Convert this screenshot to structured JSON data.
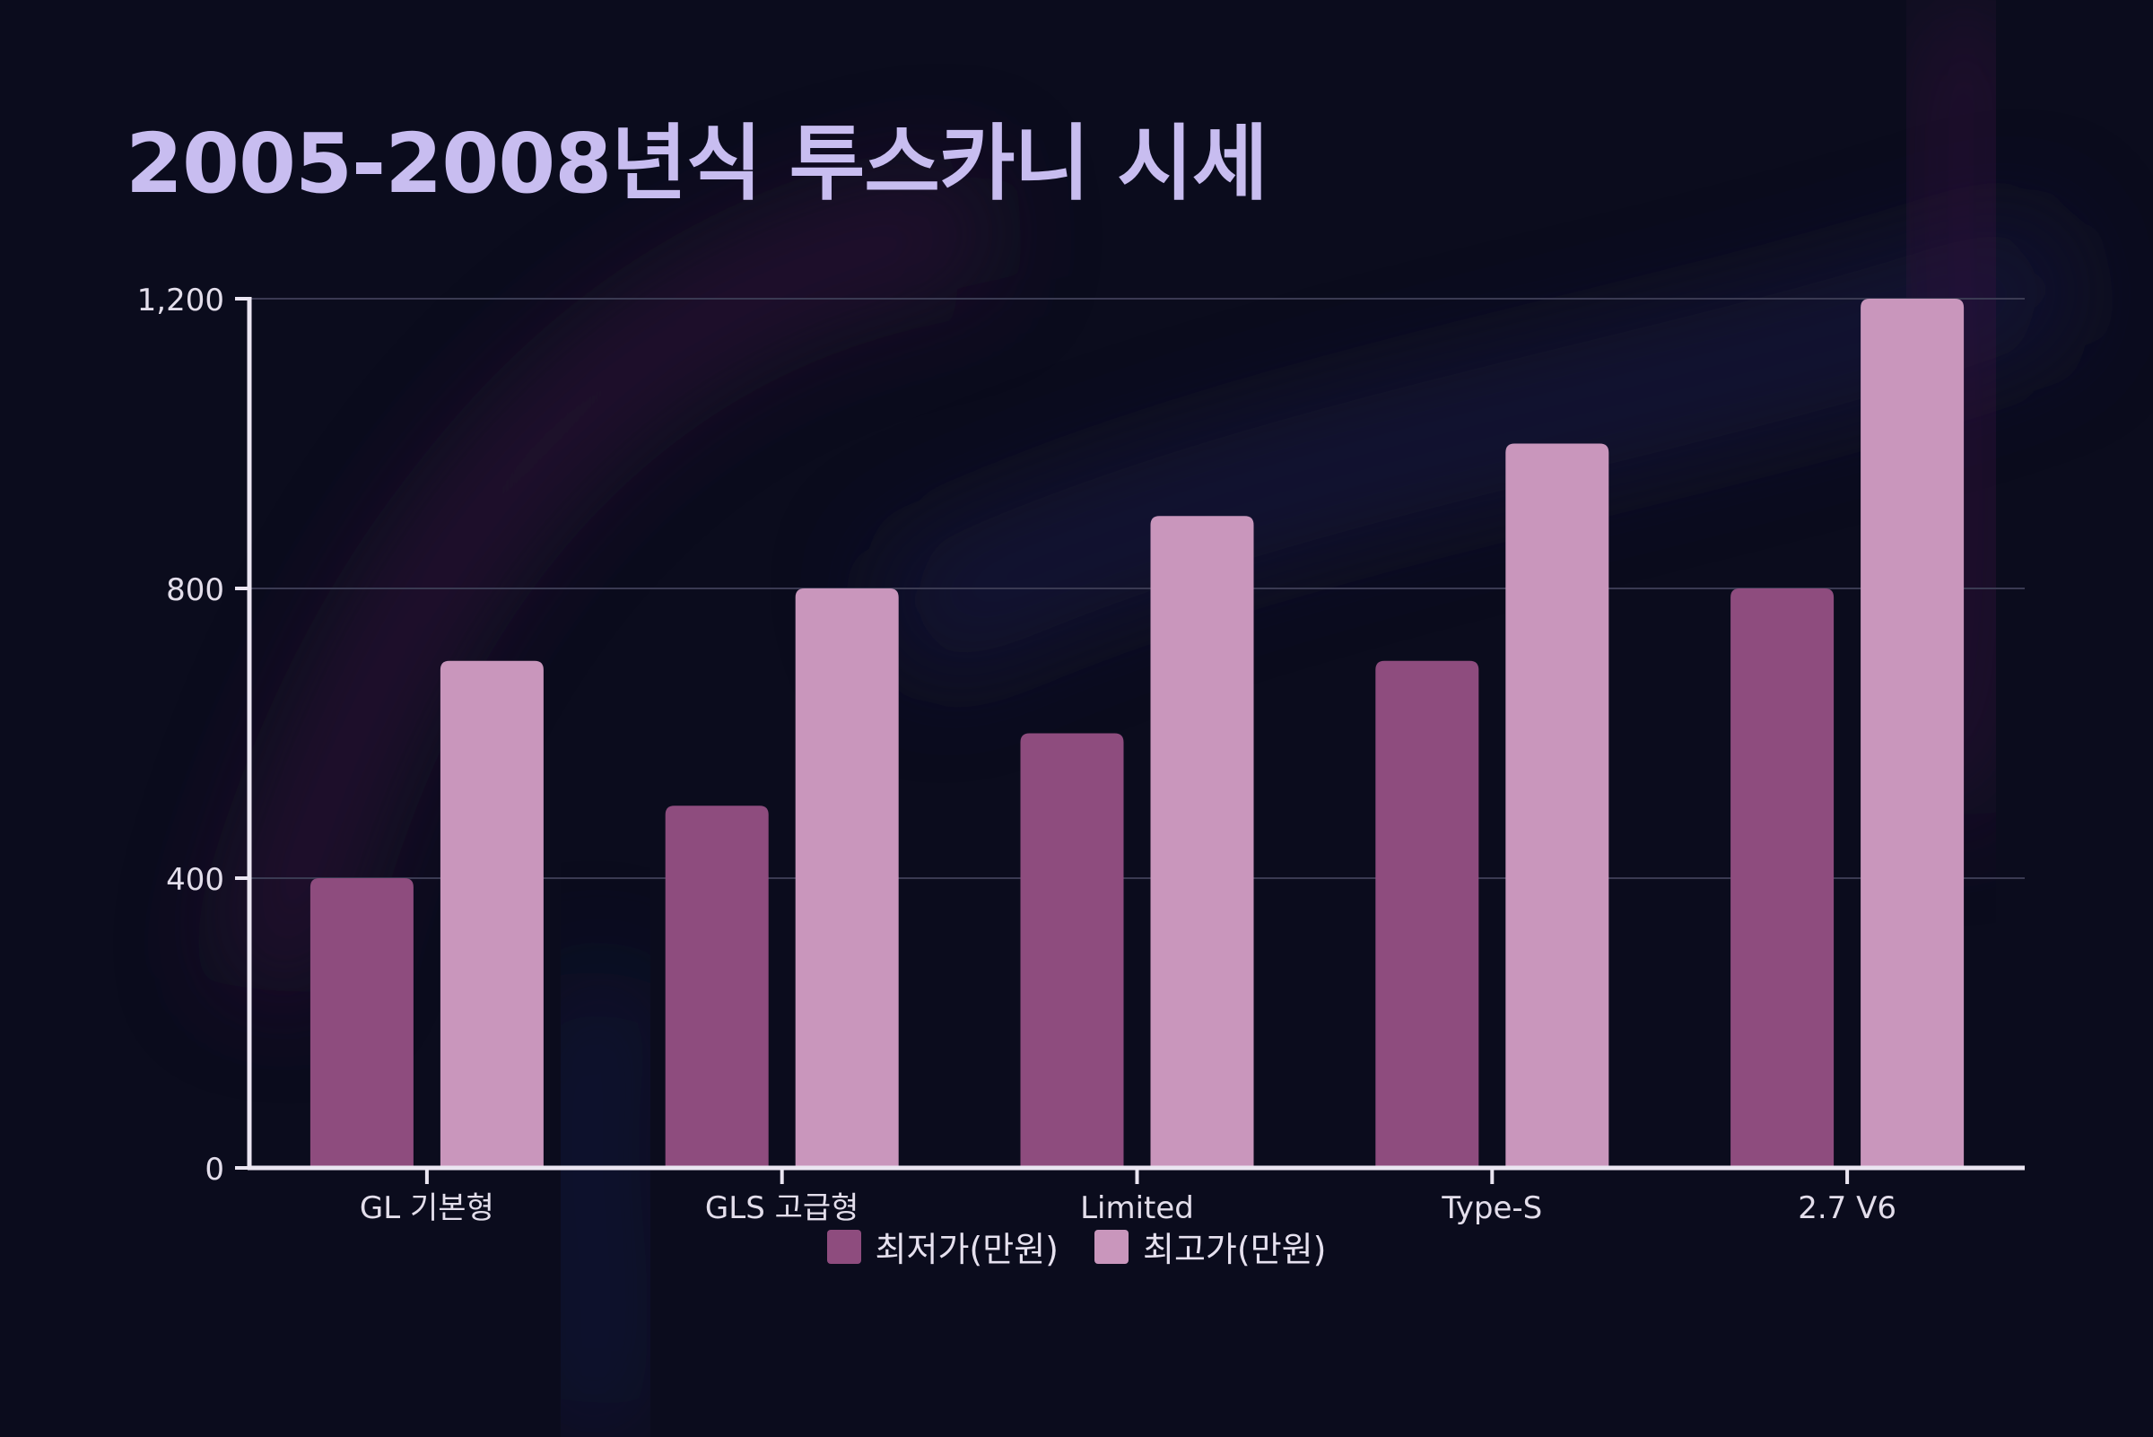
{
  "colors": {
    "background": "#0b0c1d",
    "title": "#c8bdf0",
    "series_low": "#8e4c7e",
    "series_high": "#c996bc",
    "axis": "#ebe6f2",
    "grid": "#3a3a52",
    "tick_label": "#e3deeb"
  },
  "chart_data": {
    "type": "bar",
    "title": "2005-2008년식 투스카니 시세",
    "xlabel": "",
    "ylabel": "",
    "categories": [
      "GL 기본형",
      "GLS 고급형",
      "Limited",
      "Type-S",
      "2.7 V6"
    ],
    "series": [
      {
        "name": "최저가(만원)",
        "values": [
          400,
          500,
          600,
          700,
          800
        ]
      },
      {
        "name": "최고가(만원)",
        "values": [
          700,
          800,
          900,
          1000,
          1200
        ]
      }
    ],
    "ylim": [
      0,
      1200
    ],
    "yticks": [
      0,
      400,
      800,
      1200
    ],
    "ytick_labels": [
      "0",
      "400",
      "800",
      "1,200"
    ],
    "grid": true,
    "legend_position": "bottom-center"
  }
}
